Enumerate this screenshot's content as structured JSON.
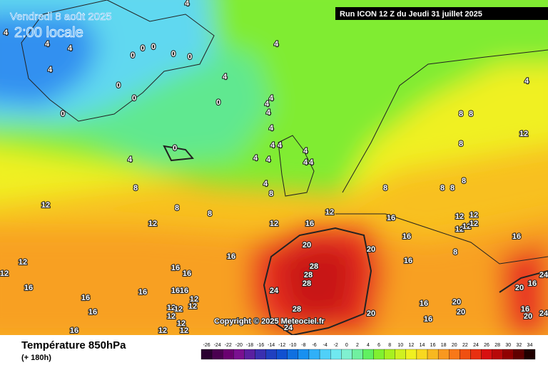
{
  "header": {
    "date": "Vendredi 8 août 2025",
    "time": "2:00 locale",
    "run": "Run ICON 12 Z du Jeudi 31 juillet 2025"
  },
  "footer": {
    "title": "Température 850hPa",
    "lead": "(+ 180h)",
    "copyright": "Copyright © 2025 Meteociel.fr"
  },
  "scale": {
    "labels": [
      -26,
      -24,
      -22,
      -20,
      -18,
      -16,
      -14,
      -12,
      -10,
      -8,
      -6,
      -4,
      -2,
      0,
      2,
      4,
      6,
      8,
      10,
      12,
      14,
      16,
      18,
      20,
      22,
      24,
      26,
      28,
      30,
      32,
      34
    ],
    "colors": [
      "#2a0030",
      "#4a0050",
      "#6a0070",
      "#7a1090",
      "#5a20a0",
      "#3a30b0",
      "#2040c0",
      "#1050d0",
      "#1070e0",
      "#1890f0",
      "#30b0f8",
      "#50d0f8",
      "#70e8f0",
      "#80f0d0",
      "#70f0a0",
      "#60f060",
      "#80f030",
      "#a8f020",
      "#d0f020",
      "#f0f020",
      "#f8d820",
      "#f8b820",
      "#f89820",
      "#f87818",
      "#f05010",
      "#e83010",
      "#d81010",
      "#b80808",
      "#900000",
      "#600000",
      "#200000"
    ]
  },
  "map": {
    "contour_labels": [
      4,
      4,
      4,
      4,
      4,
      0,
      0,
      0,
      0,
      0,
      0,
      0,
      0,
      4,
      4,
      4,
      0,
      4,
      4,
      4,
      0,
      4,
      4,
      4,
      4,
      4,
      4,
      4,
      4,
      4,
      8,
      8,
      8,
      8,
      12,
      12,
      12,
      16,
      12,
      8,
      8,
      8,
      8,
      8,
      8,
      8,
      12,
      4,
      16,
      16,
      12,
      12,
      12,
      12,
      12,
      8,
      16,
      16,
      20,
      16,
      28,
      28,
      28,
      24,
      28,
      24,
      12,
      12,
      16,
      16,
      16,
      16,
      16,
      16,
      16,
      16,
      16,
      12,
      12,
      12,
      12,
      12,
      12,
      12,
      12,
      20,
      16,
      20,
      20,
      16,
      20,
      16,
      24,
      16,
      20,
      24,
      20
    ]
  }
}
